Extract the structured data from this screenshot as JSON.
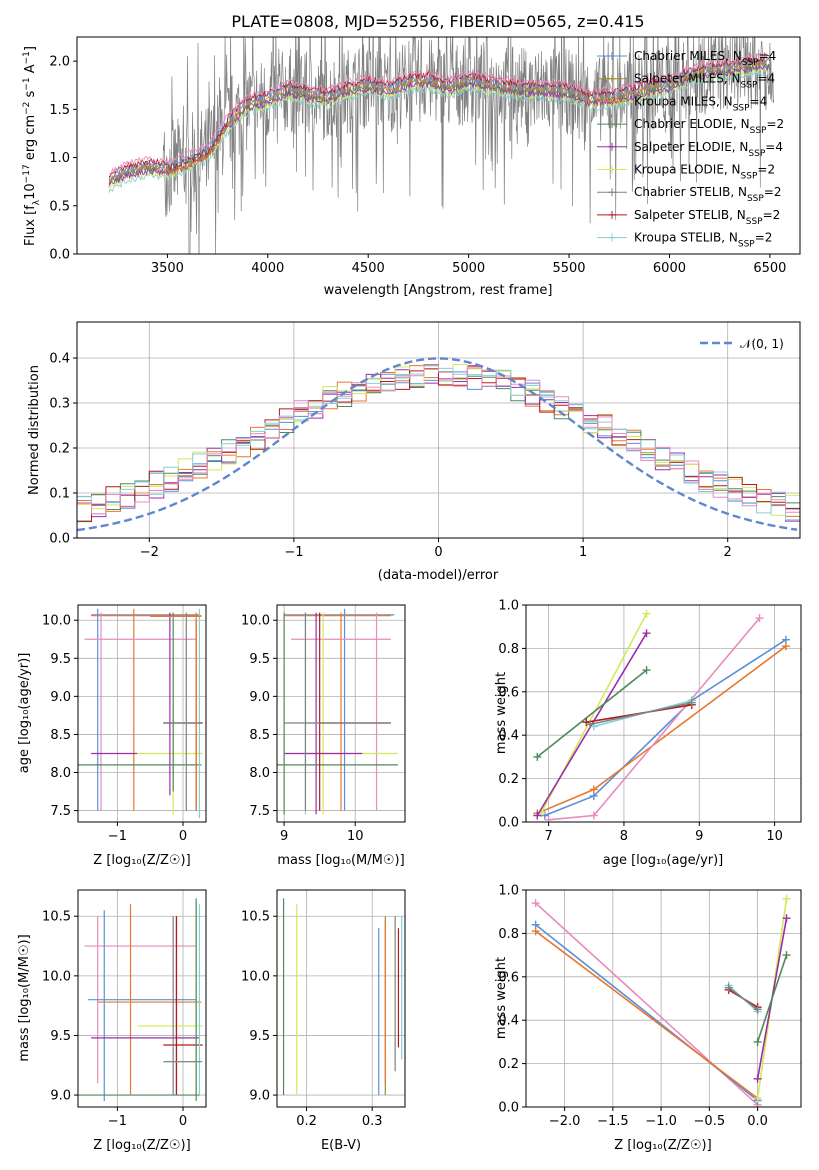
{
  "colors": {
    "chabrier_miles": "#5b8fd9",
    "salpeter_miles": "#9b8a2a",
    "kroupa_miles": "#e7782f",
    "chabrier_elodie": "#4e8a5b",
    "salpeter_elodie": "#9b2ea8",
    "kroupa_elodie": "#d4e85a",
    "chabrier_stelib": "#808080",
    "salpeter_stelib": "#b01c1c",
    "kroupa_stelib": "#86cfd8",
    "pink": "#e88bbf",
    "normal": "#5f87cf",
    "data": "#808080"
  },
  "chart_data": [
    {
      "id": "spectrum",
      "type": "line",
      "title": "PLATE=0808, MJD=52556, FIBERID=0565, z=0.415",
      "xlabel": "wavelength [Angstrom, rest frame]",
      "ylabel": "Flux [f_λ10^-17 erg cm^-2 s^-1 A^-1]",
      "xlim": [
        3050,
        6650
      ],
      "ylim": [
        0,
        2.25
      ],
      "xticks": [
        3500,
        4000,
        4500,
        5000,
        5500,
        6000,
        6500
      ],
      "yticks": [
        0.0,
        0.5,
        1.0,
        1.5,
        2.0
      ],
      "grid": false,
      "legend_position": "top-right",
      "legend": [
        "Chabrier MILES, N_SSP=4",
        "Salpeter MILES, N_SSP=4",
        "Kroupa MILES, N_SSP=4",
        "Chabrier ELODIE, N_SSP=2",
        "Salpeter ELODIE, N_SSP=4",
        "Kroupa ELODIE, N_SSP=2",
        "Chabrier STELIB, N_SSP=2",
        "Salpeter STELIB, N_SSP=2",
        "Kroupa STELIB, N_SSP=2"
      ],
      "model_curve": {
        "x": [
          3210,
          3300,
          3400,
          3500,
          3600,
          3700,
          3800,
          3900,
          4000,
          4100,
          4200,
          4300,
          4400,
          4500,
          4600,
          4700,
          4800,
          4900,
          5000,
          5100,
          5200,
          5300,
          5400,
          5500,
          5600,
          5700,
          5800,
          5900,
          6000,
          6100,
          6200,
          6300,
          6400,
          6500
        ],
        "y": [
          0.75,
          0.85,
          0.9,
          0.88,
          0.95,
          1.05,
          1.35,
          1.55,
          1.6,
          1.7,
          1.65,
          1.62,
          1.7,
          1.75,
          1.7,
          1.78,
          1.8,
          1.72,
          1.8,
          1.75,
          1.72,
          1.7,
          1.7,
          1.68,
          1.6,
          1.62,
          1.65,
          1.72,
          1.75,
          1.85,
          1.9,
          1.92,
          1.95,
          1.98
        ]
      }
    },
    {
      "id": "residuals",
      "type": "line",
      "xlabel": "(data-model)/error",
      "ylabel": "Normed distribution",
      "xlim": [
        -2.5,
        2.5
      ],
      "ylim": [
        0,
        0.48
      ],
      "xticks": [
        -2,
        -1,
        0,
        1,
        2
      ],
      "yticks": [
        0.0,
        0.1,
        0.2,
        0.3,
        0.4
      ],
      "grid": true,
      "legend_position": "top-right",
      "legend": [
        "𝒩(0, 1)"
      ]
    },
    {
      "id": "age_vs_Z",
      "type": "scatter",
      "xlabel": "Z [log₁₀(Z/Z☉)]",
      "ylabel": "age  [log₁₀(age/yr)]",
      "xlim": [
        -1.6,
        0.35
      ],
      "ylim": [
        7.35,
        10.2
      ],
      "xticks": [
        -1,
        0
      ],
      "yticks": [
        7.5,
        8.0,
        8.5,
        9.0,
        9.5,
        10.0
      ],
      "grid": true
    },
    {
      "id": "age_vs_mass",
      "type": "scatter",
      "xlabel": "mass [log₁₀(M/M☉)]",
      "xlim": [
        8.9,
        10.7
      ],
      "ylim": [
        7.35,
        10.2
      ],
      "xticks": [
        9,
        10
      ],
      "yticks": [
        7.5,
        8.0,
        8.5,
        9.0,
        9.5,
        10.0
      ],
      "grid": true
    },
    {
      "id": "weight_vs_age",
      "type": "line",
      "xlabel": "age  [log₁₀(age/yr)]",
      "ylabel": "mass weight",
      "xlim": [
        6.7,
        10.35
      ],
      "ylim": [
        0,
        1.0
      ],
      "xticks": [
        7,
        8,
        9,
        10
      ],
      "yticks": [
        0.0,
        0.2,
        0.4,
        0.6,
        0.8,
        1.0
      ],
      "grid": true,
      "series": [
        {
          "color": "chabrier_miles",
          "x": [
            6.95,
            7.6,
            8.9,
            10.15
          ],
          "y": [
            0.03,
            0.12,
            0.56,
            0.84
          ]
        },
        {
          "color": "kroupa_miles",
          "x": [
            6.85,
            7.6,
            10.15
          ],
          "y": [
            0.04,
            0.15,
            0.81
          ]
        },
        {
          "color": "pink",
          "x": [
            7.0,
            7.6,
            9.8
          ],
          "y": [
            0.01,
            0.03,
            0.94
          ]
        },
        {
          "color": "kroupa_elodie",
          "x": [
            6.9,
            8.3
          ],
          "y": [
            0.04,
            0.96
          ]
        },
        {
          "color": "salpeter_elodie",
          "x": [
            6.85,
            8.3
          ],
          "y": [
            0.03,
            0.87
          ]
        },
        {
          "color": "chabrier_elodie",
          "x": [
            6.85,
            8.3
          ],
          "y": [
            0.3,
            0.7
          ]
        },
        {
          "color": "salpeter_stelib",
          "x": [
            7.5,
            8.9
          ],
          "y": [
            0.46,
            0.54
          ]
        },
        {
          "color": "kroupa_stelib",
          "x": [
            7.6,
            8.9
          ],
          "y": [
            0.44,
            0.56
          ]
        },
        {
          "color": "chabrier_stelib",
          "x": [
            7.55,
            8.9
          ],
          "y": [
            0.45,
            0.55
          ]
        }
      ]
    },
    {
      "id": "mass_vs_Z",
      "type": "scatter",
      "xlabel": "Z [log₁₀(Z/Z☉)]",
      "ylabel": "mass [log₁₀(M/M☉)]",
      "xlim": [
        -1.6,
        0.35
      ],
      "ylim": [
        8.9,
        10.72
      ],
      "xticks": [
        -1,
        0
      ],
      "yticks": [
        9.0,
        9.5,
        10.0,
        10.5
      ],
      "grid": true
    },
    {
      "id": "mass_vs_ebv",
      "type": "scatter",
      "xlabel": "E(B-V)",
      "xlim": [
        0.155,
        0.35
      ],
      "ylim": [
        8.9,
        10.72
      ],
      "xticks": [
        0.2,
        0.3
      ],
      "yticks": [
        9.0,
        9.5,
        10.0,
        10.5
      ],
      "grid": true
    },
    {
      "id": "weight_vs_Z",
      "type": "line",
      "xlabel": "Z [log₁₀(Z/Z☉)]",
      "ylabel": "mass weight",
      "xlim": [
        -2.4,
        0.45
      ],
      "ylim": [
        0,
        1.0
      ],
      "xticks": [
        -2.0,
        -1.5,
        -1.0,
        -0.5,
        0.0
      ],
      "yticks": [
        0.0,
        0.2,
        0.4,
        0.6,
        0.8,
        1.0
      ],
      "grid": true,
      "series": [
        {
          "color": "pink",
          "x": [
            -2.3,
            0.0
          ],
          "y": [
            0.94,
            0.01
          ]
        },
        {
          "color": "chabrier_miles",
          "x": [
            -2.3,
            0.0
          ],
          "y": [
            0.84,
            0.03
          ]
        },
        {
          "color": "kroupa_miles",
          "x": [
            -2.3,
            0.0
          ],
          "y": [
            0.81,
            0.04
          ]
        },
        {
          "color": "kroupa_elodie",
          "x": [
            0.0,
            0.3
          ],
          "y": [
            0.04,
            0.96
          ]
        },
        {
          "color": "salpeter_elodie",
          "x": [
            0.0,
            0.3
          ],
          "y": [
            0.13,
            0.87
          ]
        },
        {
          "color": "chabrier_elodie",
          "x": [
            0.0,
            0.3
          ],
          "y": [
            0.3,
            0.7
          ]
        },
        {
          "color": "salpeter_stelib",
          "x": [
            -0.3,
            0.0
          ],
          "y": [
            0.54,
            0.46
          ]
        },
        {
          "color": "kroupa_stelib",
          "x": [
            -0.3,
            0.0
          ],
          "y": [
            0.56,
            0.44
          ]
        },
        {
          "color": "chabrier_stelib",
          "x": [
            -0.3,
            0.0
          ],
          "y": [
            0.55,
            0.45
          ]
        }
      ]
    }
  ]
}
